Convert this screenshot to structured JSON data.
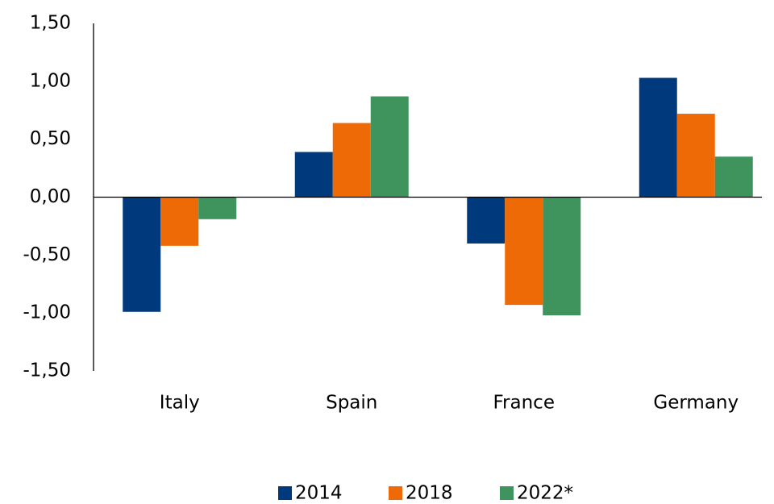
{
  "chart_data": {
    "type": "bar",
    "categories": [
      "Italy",
      "Spain",
      "France",
      "Germany"
    ],
    "series": [
      {
        "name": "2014",
        "color": "#003a7d",
        "values": [
          -0.99,
          0.39,
          -0.4,
          1.03
        ]
      },
      {
        "name": "2018",
        "color": "#ed6a06",
        "values": [
          -0.42,
          0.64,
          -0.93,
          0.72
        ]
      },
      {
        "name": "2022*",
        "color": "#3f935c",
        "values": [
          -0.19,
          0.87,
          -1.02,
          0.35
        ]
      }
    ],
    "ylim": [
      -1.5,
      1.5
    ],
    "yticks": [
      {
        "value": -1.5,
        "label": "-1,50"
      },
      {
        "value": -1.0,
        "label": "-1,00"
      },
      {
        "value": -0.5,
        "label": "-0,50"
      },
      {
        "value": 0,
        "label": "0,00"
      },
      {
        "value": 0.5,
        "label": "0,50"
      },
      {
        "value": 1.0,
        "label": "1,00"
      },
      {
        "value": 1.5,
        "label": "1,50"
      }
    ],
    "grid": false,
    "legend": "bottom"
  }
}
